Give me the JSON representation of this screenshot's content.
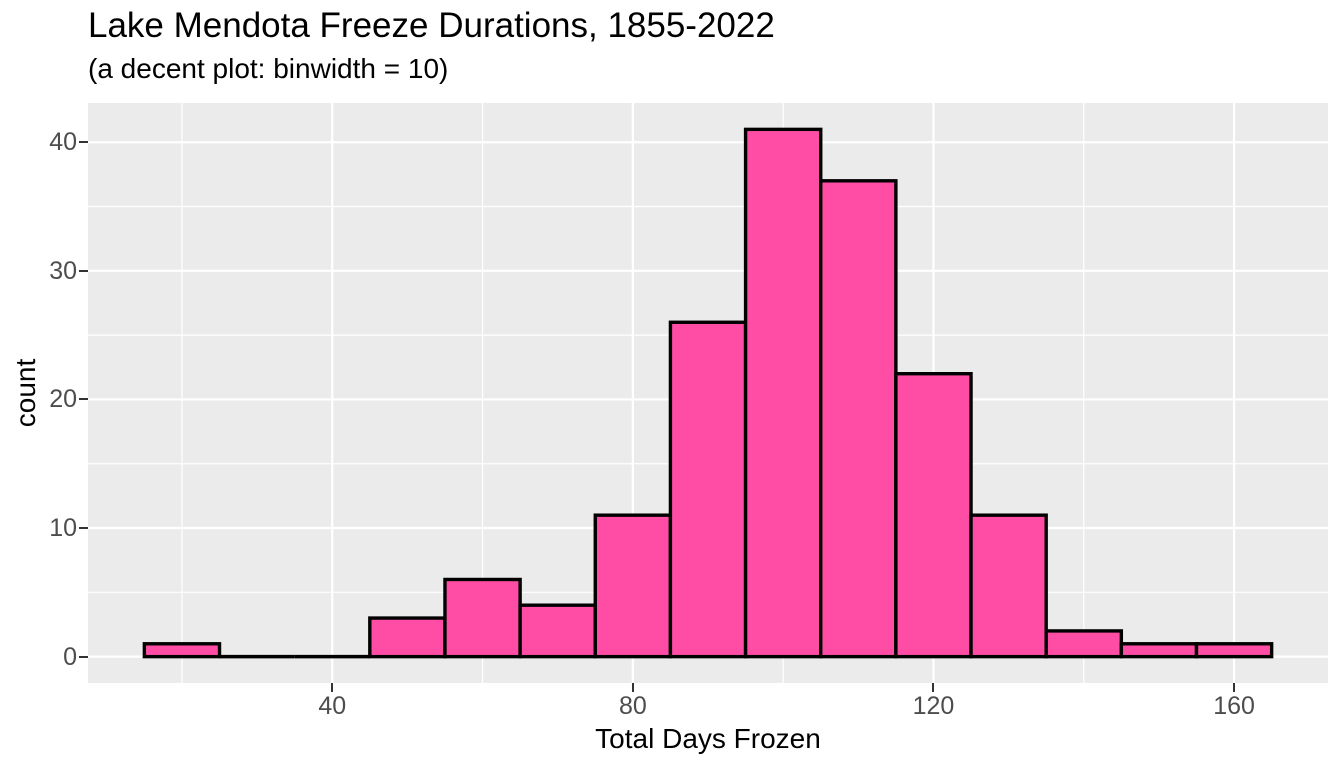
{
  "chart_data": {
    "type": "bar",
    "variant": "histogram",
    "title": "Lake Mendota Freeze Durations, 1855-2022",
    "subtitle": "(a decent plot: binwidth = 10)",
    "xlabel": "Total Days Frozen",
    "ylabel": "count",
    "binwidth": 10,
    "bins": [
      {
        "x0": 15,
        "x1": 25,
        "count": 1
      },
      {
        "x0": 25,
        "x1": 35,
        "count": 0
      },
      {
        "x0": 35,
        "x1": 45,
        "count": 0
      },
      {
        "x0": 45,
        "x1": 55,
        "count": 3
      },
      {
        "x0": 55,
        "x1": 65,
        "count": 6
      },
      {
        "x0": 65,
        "x1": 75,
        "count": 4
      },
      {
        "x0": 75,
        "x1": 85,
        "count": 11
      },
      {
        "x0": 85,
        "x1": 95,
        "count": 26
      },
      {
        "x0": 95,
        "x1": 105,
        "count": 41
      },
      {
        "x0": 105,
        "x1": 115,
        "count": 37
      },
      {
        "x0": 115,
        "x1": 125,
        "count": 22
      },
      {
        "x0": 125,
        "x1": 135,
        "count": 11
      },
      {
        "x0": 135,
        "x1": 145,
        "count": 2
      },
      {
        "x0": 145,
        "x1": 155,
        "count": 1
      },
      {
        "x0": 155,
        "x1": 165,
        "count": 1
      }
    ],
    "x_ticks": [
      40,
      80,
      120,
      160
    ],
    "x_minor_ticks": [
      20,
      60,
      100,
      140
    ],
    "y_ticks": [
      0,
      10,
      20,
      30,
      40
    ],
    "y_minor_ticks": [
      5,
      15,
      25,
      35
    ],
    "xlim": [
      7.5,
      172.5
    ],
    "ylim": [
      -2.05,
      43.05
    ],
    "grid": true,
    "legend": "none",
    "style": {
      "bar_fill": "#FF4DA6",
      "bar_stroke": "#000000",
      "panel_bg": "#EBEBEB",
      "grid_color": "#FFFFFF",
      "axis_text_color": "#4D4D4D",
      "axis_title_color": "#000000",
      "title_color": "#000000",
      "tick_mark_color": "#333333"
    }
  }
}
